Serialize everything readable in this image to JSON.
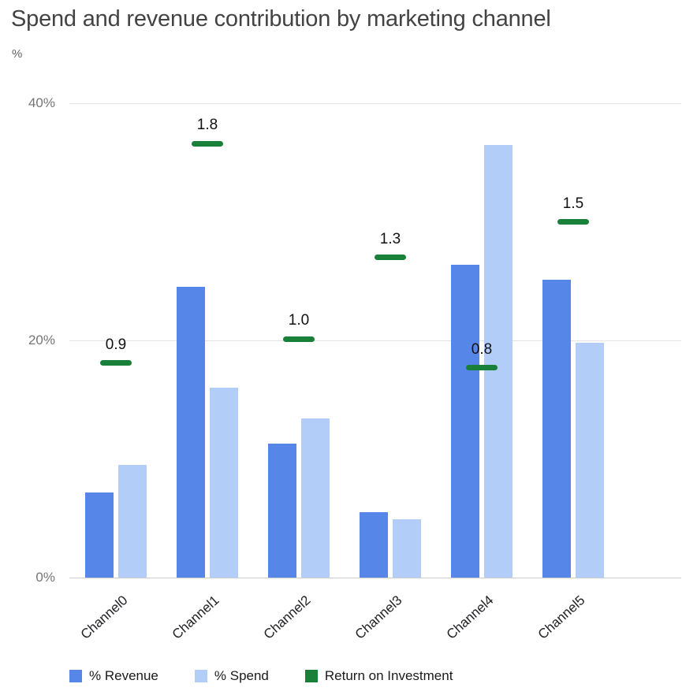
{
  "title": "Spend and revenue contribution by marketing channel",
  "axis_unit": "%",
  "chart_data": {
    "type": "bar",
    "title": "Spend and revenue contribution by marketing channel",
    "xlabel": "",
    "ylabel": "%",
    "categories": [
      "Channel0",
      "Channel1",
      "Channel2",
      "Channel3",
      "Channel4",
      "Channel5"
    ],
    "series": [
      {
        "name": "% Revenue",
        "type": "bar",
        "color": "#5687e8",
        "values": [
          7.2,
          24.5,
          11.3,
          5.5,
          26.4,
          25.1
        ]
      },
      {
        "name": "% Spend",
        "type": "bar",
        "color": "#b3cdf9",
        "values": [
          9.5,
          16.0,
          13.4,
          4.9,
          36.5,
          19.8
        ]
      },
      {
        "name": "Return on Investment",
        "type": "dash-marker",
        "color": "#188038",
        "values": [
          0.9,
          1.8,
          1.0,
          1.3,
          0.8,
          1.5
        ],
        "labels": [
          "0.9",
          "1.8",
          "1.0",
          "1.3",
          "0.8",
          "1.5"
        ],
        "plotted_pct": [
          18.1,
          36.6,
          20.1,
          27.0,
          17.7,
          30.0
        ]
      }
    ],
    "ylim": [
      0,
      40
    ],
    "yticks": [
      0,
      20,
      40
    ],
    "ytick_labels": [
      "0%",
      "20%",
      "40%"
    ],
    "grid": true,
    "legend_position": "bottom"
  },
  "legend": {
    "items": [
      {
        "label": "% Revenue",
        "color": "#5687e8"
      },
      {
        "label": "% Spend",
        "color": "#b3cdf9"
      },
      {
        "label": "Return on Investment",
        "color": "#188038"
      }
    ]
  }
}
